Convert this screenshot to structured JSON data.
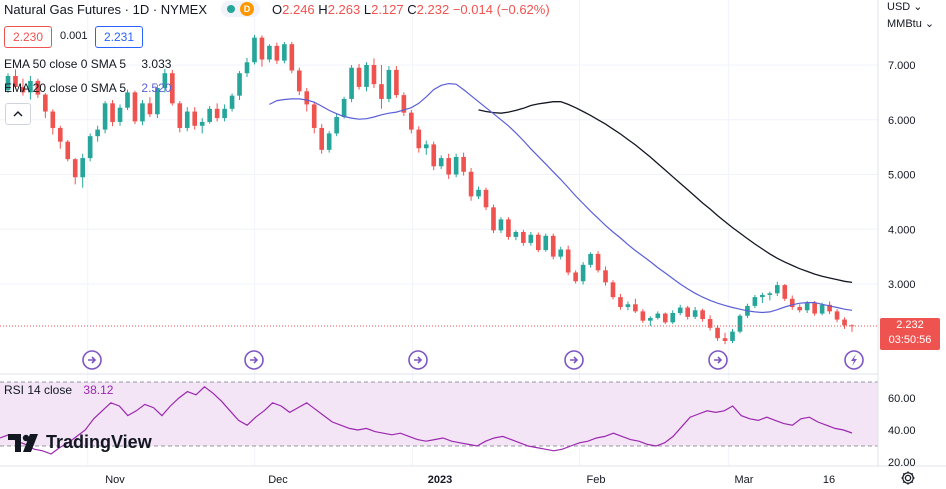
{
  "header": {
    "symbol_title": "Natural Gas Futures · 1D · NYMEX",
    "market_status": "market-open-dot",
    "delay_badge": "D",
    "open_label": "O",
    "open": "2.246",
    "high_label": "H",
    "high": "2.263",
    "low_label": "L",
    "low": "2.127",
    "close_label": "C",
    "close": "2.232",
    "change": "−0.014 (−0.62%)"
  },
  "trade": {
    "sell_price": "2.230",
    "spread": "0.001",
    "buy_price": "2.231"
  },
  "indicators": {
    "ema50_label": "EMA 50 close 0 SMA 5",
    "ema50_value": "3.033",
    "ema20_label": "EMA 20 close 0 SMA 5",
    "ema20_value": "2.520",
    "rsi_label": "RSI 14 close",
    "rsi_value": "38.12"
  },
  "price_axis": {
    "currency": "USD",
    "unit": "MMBtu",
    "ticks": [
      "7.000",
      "6.000",
      "5.000",
      "4.000",
      "3.000"
    ],
    "last_price": "2.232",
    "countdown": "03:50:56"
  },
  "rsi_axis": {
    "ticks": [
      "60.00",
      "40.00",
      "20.00"
    ]
  },
  "time_axis": {
    "labels": [
      "Nov",
      "Dec",
      "2023",
      "Feb",
      "Mar",
      "16"
    ]
  },
  "brand": {
    "logo_text": "TradingView"
  },
  "colors": {
    "up": "#26a69a",
    "down": "#ef5350",
    "ema50": "#131722",
    "ema20": "#5b5fd6",
    "rsi_line": "#9c27b0",
    "rsi_band": "#f3e5f5",
    "event_icon": "#7e57c2",
    "last_price_box": "#ef5350"
  },
  "chart_data": {
    "type": "candlestick",
    "price_range": [
      1.9,
      7.6
    ],
    "rsi_range": [
      15,
      72
    ],
    "rsi_band": [
      30,
      70
    ],
    "candles": [
      [
        6.54,
        6.85,
        6.49,
        6.8
      ],
      [
        6.8,
        6.92,
        6.57,
        6.6
      ],
      [
        6.6,
        6.75,
        6.44,
        6.5
      ],
      [
        6.5,
        6.8,
        6.37,
        6.71
      ],
      [
        6.71,
        6.75,
        6.4,
        6.46
      ],
      [
        6.46,
        6.49,
        6.03,
        6.15
      ],
      [
        6.15,
        6.19,
        5.73,
        5.85
      ],
      [
        5.85,
        5.89,
        5.47,
        5.6
      ],
      [
        5.6,
        5.63,
        5.24,
        5.28
      ],
      [
        5.28,
        5.3,
        4.82,
        4.95
      ],
      [
        4.95,
        5.38,
        4.76,
        5.3
      ],
      [
        5.3,
        5.75,
        5.24,
        5.7
      ],
      [
        5.7,
        5.89,
        5.6,
        5.82
      ],
      [
        5.82,
        6.34,
        5.75,
        6.3
      ],
      [
        6.3,
        6.36,
        5.88,
        5.96
      ],
      [
        5.96,
        6.28,
        5.89,
        6.22
      ],
      [
        6.22,
        6.55,
        6.18,
        6.5
      ],
      [
        6.5,
        6.53,
        5.92,
        5.97
      ],
      [
        5.97,
        6.36,
        5.9,
        6.3
      ],
      [
        6.3,
        6.41,
        6.05,
        6.1
      ],
      [
        6.1,
        6.64,
        6.03,
        6.58
      ],
      [
        6.58,
        6.93,
        6.5,
        6.85
      ],
      [
        6.85,
        6.91,
        6.26,
        6.3
      ],
      [
        6.3,
        6.34,
        5.77,
        5.85
      ],
      [
        5.85,
        6.23,
        5.79,
        6.15
      ],
      [
        6.15,
        6.23,
        5.82,
        5.89
      ],
      [
        5.89,
        6.03,
        5.75,
        5.96
      ],
      [
        5.96,
        6.25,
        5.93,
        6.2
      ],
      [
        6.2,
        6.3,
        5.97,
        6.03
      ],
      [
        6.03,
        6.28,
        5.97,
        6.2
      ],
      [
        6.2,
        6.48,
        6.15,
        6.44
      ],
      [
        6.44,
        6.89,
        6.36,
        6.85
      ],
      [
        6.85,
        7.13,
        6.78,
        7.05
      ],
      [
        7.05,
        7.55,
        7.01,
        7.5
      ],
      [
        7.5,
        7.54,
        6.97,
        7.1
      ],
      [
        7.1,
        7.38,
        7.05,
        7.35
      ],
      [
        7.35,
        7.41,
        7.02,
        7.08
      ],
      [
        7.08,
        7.42,
        7.03,
        7.38
      ],
      [
        7.38,
        7.42,
        6.85,
        6.9
      ],
      [
        6.9,
        6.95,
        6.45,
        6.52
      ],
      [
        6.52,
        6.58,
        6.15,
        6.28
      ],
      [
        6.28,
        6.32,
        5.75,
        5.85
      ],
      [
        5.85,
        5.92,
        5.38,
        5.45
      ],
      [
        5.45,
        5.79,
        5.4,
        5.75
      ],
      [
        5.75,
        6.12,
        5.7,
        6.05
      ],
      [
        6.05,
        6.42,
        6.02,
        6.38
      ],
      [
        6.38,
        7.0,
        6.32,
        6.95
      ],
      [
        6.95,
        7.02,
        6.55,
        6.6
      ],
      [
        6.6,
        7.05,
        6.52,
        7.0
      ],
      [
        7.0,
        7.12,
        6.58,
        6.65
      ],
      [
        6.65,
        7.0,
        6.2,
        6.38
      ],
      [
        6.38,
        6.98,
        6.32,
        6.91
      ],
      [
        6.91,
        6.98,
        6.4,
        6.45
      ],
      [
        6.45,
        6.5,
        6.07,
        6.13
      ],
      [
        6.13,
        6.18,
        5.75,
        5.82
      ],
      [
        5.82,
        5.88,
        5.4,
        5.48
      ],
      [
        5.48,
        5.62,
        5.36,
        5.55
      ],
      [
        5.55,
        5.6,
        5.08,
        5.15
      ],
      [
        5.15,
        5.35,
        5.1,
        5.3
      ],
      [
        5.3,
        5.38,
        4.92,
        5.0
      ],
      [
        5.0,
        5.38,
        4.95,
        5.32
      ],
      [
        5.32,
        5.4,
        4.98,
        5.05
      ],
      [
        5.05,
        5.12,
        4.52,
        4.6
      ],
      [
        4.6,
        4.78,
        4.55,
        4.72
      ],
      [
        4.72,
        4.76,
        4.35,
        4.4
      ],
      [
        4.4,
        4.45,
        3.93,
        3.98
      ],
      [
        3.98,
        4.22,
        3.93,
        4.18
      ],
      [
        4.18,
        4.22,
        3.81,
        3.86
      ],
      [
        3.86,
        3.98,
        3.8,
        3.95
      ],
      [
        3.95,
        3.99,
        3.7,
        3.75
      ],
      [
        3.75,
        3.95,
        3.7,
        3.9
      ],
      [
        3.9,
        3.94,
        3.58,
        3.62
      ],
      [
        3.62,
        3.92,
        3.59,
        3.88
      ],
      [
        3.88,
        3.92,
        3.45,
        3.5
      ],
      [
        3.5,
        3.68,
        3.45,
        3.63
      ],
      [
        3.63,
        3.7,
        3.16,
        3.21
      ],
      [
        3.21,
        3.25,
        3.01,
        3.05
      ],
      [
        3.05,
        3.4,
        2.99,
        3.35
      ],
      [
        3.35,
        3.58,
        3.3,
        3.55
      ],
      [
        3.55,
        3.6,
        3.21,
        3.25
      ],
      [
        3.25,
        3.32,
        2.97,
        3.03
      ],
      [
        3.03,
        3.07,
        2.72,
        2.76
      ],
      [
        2.76,
        2.82,
        2.53,
        2.58
      ],
      [
        2.58,
        2.68,
        2.52,
        2.63
      ],
      [
        2.63,
        2.73,
        2.47,
        2.5
      ],
      [
        2.5,
        2.54,
        2.29,
        2.33
      ],
      [
        2.33,
        2.41,
        2.23,
        2.38
      ],
      [
        2.38,
        2.5,
        2.35,
        2.46
      ],
      [
        2.46,
        2.48,
        2.27,
        2.3
      ],
      [
        2.3,
        2.52,
        2.27,
        2.47
      ],
      [
        2.47,
        2.62,
        2.43,
        2.57
      ],
      [
        2.57,
        2.6,
        2.35,
        2.4
      ],
      [
        2.4,
        2.58,
        2.36,
        2.52
      ],
      [
        2.52,
        2.55,
        2.31,
        2.36
      ],
      [
        2.36,
        2.43,
        2.15,
        2.2
      ],
      [
        2.2,
        2.25,
        1.96,
        2.01
      ],
      [
        2.01,
        2.11,
        1.9,
        1.96
      ],
      [
        1.96,
        2.18,
        1.92,
        2.13
      ],
      [
        2.13,
        2.45,
        2.1,
        2.42
      ],
      [
        2.42,
        2.64,
        2.38,
        2.6
      ],
      [
        2.6,
        2.8,
        2.56,
        2.76
      ],
      [
        2.76,
        2.84,
        2.65,
        2.8
      ],
      [
        2.8,
        2.86,
        2.7,
        2.83
      ],
      [
        2.83,
        3.04,
        2.78,
        2.98
      ],
      [
        2.98,
        3.0,
        2.69,
        2.73
      ],
      [
        2.73,
        2.79,
        2.53,
        2.58
      ],
      [
        2.58,
        2.63,
        2.48,
        2.52
      ],
      [
        2.52,
        2.69,
        2.47,
        2.65
      ],
      [
        2.65,
        2.69,
        2.42,
        2.46
      ],
      [
        2.46,
        2.66,
        2.43,
        2.62
      ],
      [
        2.62,
        2.68,
        2.45,
        2.5
      ],
      [
        2.5,
        2.54,
        2.3,
        2.35
      ],
      [
        2.35,
        2.39,
        2.18,
        2.246
      ],
      [
        2.246,
        2.263,
        2.127,
        2.232
      ]
    ],
    "ema20": [
      6.28,
      6.35,
      6.37,
      6.38,
      6.38,
      6.36,
      6.32,
      6.25,
      6.17,
      6.11,
      6.06,
      6.03,
      6.01,
      6.02,
      6.05,
      6.09,
      6.12,
      6.14,
      6.18,
      6.22,
      6.3,
      6.42,
      6.55,
      6.63,
      6.66,
      6.65,
      6.55,
      6.44,
      6.33,
      6.22,
      6.11,
      6.0,
      5.89,
      5.76,
      5.62,
      5.47,
      5.33,
      5.19,
      5.05,
      4.91,
      4.76,
      4.61,
      4.47,
      4.33,
      4.2,
      4.07,
      3.95,
      3.84,
      3.72,
      3.61,
      3.51,
      3.41,
      3.3,
      3.2,
      3.1,
      3.0,
      2.91,
      2.83,
      2.76,
      2.7,
      2.65,
      2.61,
      2.57,
      2.54,
      2.51,
      2.49,
      2.48,
      2.49,
      2.53,
      2.58,
      2.62,
      2.65,
      2.66,
      2.66,
      2.63,
      2.6,
      2.57,
      2.54,
      2.52
    ],
    "ema50": [
      6.18,
      6.15,
      6.13,
      6.12,
      6.14,
      6.17,
      6.21,
      6.26,
      6.29,
      6.31,
      6.33,
      6.33,
      6.28,
      6.22,
      6.15,
      6.08,
      6.0,
      5.92,
      5.83,
      5.74,
      5.64,
      5.54,
      5.43,
      5.32,
      5.2,
      5.08,
      4.96,
      4.84,
      4.72,
      4.6,
      4.48,
      4.37,
      4.25,
      4.14,
      4.03,
      3.93,
      3.83,
      3.73,
      3.64,
      3.55,
      3.47,
      3.4,
      3.34,
      3.28,
      3.23,
      3.18,
      3.14,
      3.11,
      3.08,
      3.05,
      3.03
    ],
    "rsi": [
      35,
      37,
      33,
      31,
      28,
      27,
      25,
      29,
      32,
      36,
      40,
      47,
      52,
      57,
      55,
      49,
      52,
      56,
      54,
      49,
      55,
      60,
      64,
      62,
      67,
      63,
      58,
      52,
      46,
      43,
      48,
      52,
      57,
      55,
      51,
      54,
      57,
      53,
      49,
      45,
      43,
      41,
      40,
      41,
      39,
      38,
      37,
      38,
      36,
      34,
      33,
      34,
      35,
      33,
      32,
      31,
      30,
      33,
      35,
      36,
      34,
      32,
      30,
      29,
      28,
      27,
      28,
      30,
      32,
      33,
      35,
      36,
      38,
      36,
      34,
      33,
      31,
      30,
      32,
      36,
      42,
      48,
      50,
      52,
      51,
      52,
      55,
      49,
      47,
      46,
      48,
      46,
      44,
      43,
      47,
      48,
      45,
      43,
      41,
      40,
      38.12
    ],
    "price_ticks": [
      7,
      6,
      5,
      4,
      3
    ],
    "rsi_ticks": [
      60,
      40,
      20
    ],
    "x_labels": [
      "Nov",
      "Dec",
      "2023",
      "Feb",
      "Mar",
      "16"
    ],
    "last_price": 2.232,
    "event_markers": 6
  }
}
